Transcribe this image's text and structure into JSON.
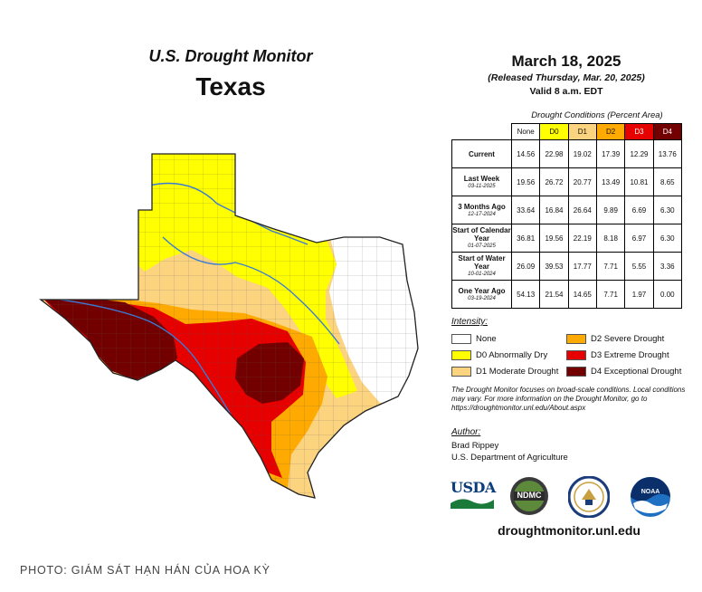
{
  "header": {
    "title": "U.S. Drought Monitor",
    "state": "Texas",
    "date": "March 18, 2025",
    "released": "(Released Thursday, Mar. 20, 2025)",
    "valid": "Valid 8 a.m. EDT"
  },
  "table": {
    "caption": "Drought Conditions (Percent Area)",
    "columns": [
      {
        "label": "None",
        "color": "#ffffff"
      },
      {
        "label": "D0",
        "color": "#ffff00"
      },
      {
        "label": "D1",
        "color": "#fcd37f"
      },
      {
        "label": "D2",
        "color": "#ffaa00"
      },
      {
        "label": "D3",
        "color": "#e60000"
      },
      {
        "label": "D4",
        "color": "#730000"
      }
    ],
    "rows": [
      {
        "label": "Current",
        "date": "",
        "values": [
          "14.56",
          "22.98",
          "19.02",
          "17.39",
          "12.29",
          "13.76"
        ]
      },
      {
        "label": "Last Week",
        "date": "03-11-2025",
        "values": [
          "19.56",
          "26.72",
          "20.77",
          "13.49",
          "10.81",
          "8.65"
        ]
      },
      {
        "label": "3 Months Ago",
        "date": "12-17-2024",
        "values": [
          "33.64",
          "16.84",
          "26.64",
          "9.89",
          "6.69",
          "6.30"
        ]
      },
      {
        "label": "Start of Calendar Year",
        "date": "01-07-2025",
        "values": [
          "36.81",
          "19.56",
          "22.19",
          "8.18",
          "6.97",
          "6.30"
        ]
      },
      {
        "label": "Start of Water Year",
        "date": "10-01-2024",
        "values": [
          "26.09",
          "39.53",
          "17.77",
          "7.71",
          "5.55",
          "3.36"
        ]
      },
      {
        "label": "One Year Ago",
        "date": "03-19-2024",
        "values": [
          "54.13",
          "21.54",
          "14.65",
          "7.71",
          "1.97",
          "0.00"
        ]
      }
    ]
  },
  "legend": {
    "title": "Intensity:",
    "items": [
      {
        "label": "None",
        "color": "#ffffff"
      },
      {
        "label": "D0 Abnormally Dry",
        "color": "#ffff00"
      },
      {
        "label": "D1 Moderate Drought",
        "color": "#fcd37f"
      },
      {
        "label": "D2 Severe Drought",
        "color": "#ffaa00"
      },
      {
        "label": "D3 Extreme Drought",
        "color": "#e60000"
      },
      {
        "label": "D4 Exceptional Drought",
        "color": "#730000"
      }
    ]
  },
  "note": "The Drought Monitor focuses on broad-scale conditions. Local conditions may vary. For more information on the Drought Monitor, go to https://droughtmonitor.unl.edu/About.aspx",
  "author": {
    "title": "Author:",
    "name": "Brad Rippey",
    "org": "U.S. Department of Agriculture"
  },
  "logos": {
    "usda": "USDA",
    "ndmc": "NDMC",
    "noaa": "NOAA"
  },
  "site": "droughtmonitor.unl.edu",
  "credit": "PHOTO: GIÁM SÁT HẠN HÁN CỦA HOA KỲ"
}
